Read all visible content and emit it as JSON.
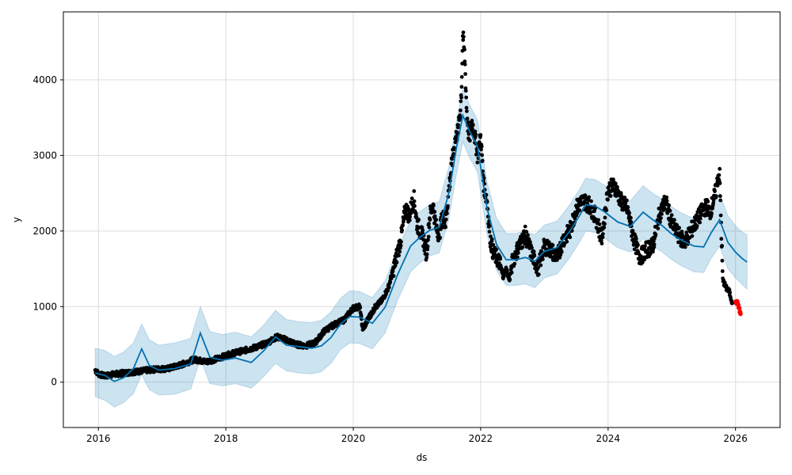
{
  "chart_data": {
    "type": "line",
    "title": "",
    "xlabel": "ds",
    "ylabel": "y",
    "xlim": [
      2015.45,
      2026.7
    ],
    "ylim": [
      -600,
      4900
    ],
    "grid": true,
    "x_ticks": [
      2016,
      2018,
      2020,
      2022,
      2024,
      2026
    ],
    "x_tick_labels": [
      "2016",
      "2018",
      "2020",
      "2022",
      "2024",
      "2026"
    ],
    "y_ticks": [
      0,
      1000,
      2000,
      3000,
      4000
    ],
    "y_tick_labels": [
      "0",
      "1000",
      "2000",
      "3000",
      "4000"
    ],
    "colors": {
      "forecast_line": "#0072b2",
      "uncertainty_band": "#0072b2",
      "observed_points": "#000000",
      "future_points": "#ff0000",
      "grid": "#dddddd"
    },
    "series": [
      {
        "role": "forecast",
        "x": [
          2015.95,
          2016.1,
          2016.25,
          2016.4,
          2016.55,
          2016.68,
          2016.8,
          2016.95,
          2017.2,
          2017.45,
          2017.6,
          2017.75,
          2017.95,
          2018.15,
          2018.4,
          2018.6,
          2018.78,
          2018.95,
          2019.15,
          2019.35,
          2019.5,
          2019.65,
          2019.8,
          2019.95,
          2020.1,
          2020.3,
          2020.5,
          2020.7,
          2020.9,
          2021.05,
          2021.2,
          2021.35,
          2021.5,
          2021.62,
          2021.72,
          2021.82,
          2021.95,
          2022.1,
          2022.25,
          2022.4,
          2022.55,
          2022.7,
          2022.85,
          2023.0,
          2023.2,
          2023.4,
          2023.55,
          2023.65,
          2023.8,
          2023.95,
          2024.15,
          2024.35,
          2024.55,
          2024.7,
          2024.85,
          2025.0,
          2025.15,
          2025.35,
          2025.5,
          2025.62,
          2025.75,
          2025.88,
          2026.0,
          2026.1,
          2026.18
        ],
        "y": [
          120,
          90,
          10,
          60,
          180,
          440,
          220,
          160,
          180,
          240,
          650,
          330,
          290,
          320,
          260,
          420,
          600,
          490,
          470,
          450,
          480,
          590,
          770,
          870,
          860,
          780,
          990,
          1430,
          1800,
          1920,
          2010,
          2050,
          2500,
          3100,
          3530,
          3330,
          3120,
          2300,
          1820,
          1620,
          1620,
          1650,
          1600,
          1730,
          1780,
          2000,
          2200,
          2350,
          2330,
          2250,
          2120,
          2060,
          2250,
          2150,
          2070,
          1960,
          1880,
          1800,
          1790,
          1980,
          2150,
          1850,
          1720,
          1640,
          1590
        ]
      },
      {
        "role": "observed",
        "x": [
          2015.95,
          2016.0,
          2016.1,
          2016.2,
          2016.3,
          2016.5,
          2016.7,
          2016.9,
          2017.1,
          2017.3,
          2017.5,
          2017.7,
          2017.9,
          2018.1,
          2018.3,
          2018.5,
          2018.65,
          2018.8,
          2018.95,
          2019.1,
          2019.25,
          2019.4,
          2019.55,
          2019.7,
          2019.85,
          2020.0,
          2020.1,
          2020.15,
          2020.25,
          2020.35,
          2020.45,
          2020.55,
          2020.65,
          2020.75,
          2020.82,
          2020.88,
          2020.95,
          2021.0,
          2021.05,
          2021.1,
          2021.15,
          2021.2,
          2021.25,
          2021.3,
          2021.35,
          2021.4,
          2021.45,
          2021.5,
          2021.55,
          2021.6,
          2021.65,
          2021.68,
          2021.7,
          2021.72,
          2021.75,
          2021.78,
          2021.82,
          2021.86,
          2021.9,
          2021.95,
          2022.0,
          2022.05,
          2022.1,
          2022.15,
          2022.2,
          2022.25,
          2022.3,
          2022.35,
          2022.4,
          2022.45,
          2022.5,
          2022.6,
          2022.7,
          2022.8,
          2022.9,
          2023.0,
          2023.1,
          2023.2,
          2023.3,
          2023.4,
          2023.5,
          2023.6,
          2023.7,
          2023.8,
          2023.9,
          2024.0,
          2024.1,
          2024.2,
          2024.3,
          2024.4,
          2024.5,
          2024.6,
          2024.7,
          2024.8,
          2024.9,
          2025.0,
          2025.1,
          2025.2,
          2025.3,
          2025.4,
          2025.5,
          2025.55,
          2025.6,
          2025.65,
          2025.7,
          2025.72,
          2025.75,
          2025.8,
          2025.85,
          2025.9,
          2025.95
        ],
        "y": [
          160,
          110,
          80,
          100,
          110,
          130,
          150,
          170,
          180,
          230,
          300,
          270,
          320,
          380,
          420,
          470,
          520,
          600,
          560,
          500,
          480,
          520,
          680,
          760,
          820,
          980,
          1000,
          700,
          860,
          1000,
          1080,
          1250,
          1560,
          1900,
          2300,
          2200,
          2450,
          2100,
          2000,
          1900,
          1700,
          2200,
          2350,
          2050,
          1950,
          2200,
          2100,
          2550,
          2900,
          3200,
          3350,
          3600,
          3900,
          4600,
          4300,
          3600,
          3200,
          3450,
          3300,
          3000,
          3250,
          2600,
          2400,
          1900,
          1700,
          1650,
          1580,
          1400,
          1500,
          1350,
          1600,
          1800,
          1950,
          1700,
          1500,
          1800,
          1750,
          1650,
          1900,
          2000,
          2300,
          2400,
          2350,
          2200,
          1900,
          2550,
          2600,
          2400,
          2300,
          1900,
          1650,
          1750,
          1800,
          2200,
          2400,
          2100,
          1950,
          1850,
          2000,
          2150,
          2300,
          2320,
          2250,
          2400,
          2550,
          2700,
          2750,
          1350,
          1250,
          1200,
          1050
        ]
      },
      {
        "role": "future",
        "x": [
          2026.0,
          2026.02,
          2026.04,
          2026.06,
          2026.08
        ],
        "y": [
          1050,
          1060,
          1030,
          960,
          900
        ]
      }
    ],
    "band": {
      "role": "uncertainty",
      "x": [
        2015.95,
        2016.1,
        2016.25,
        2016.4,
        2016.55,
        2016.68,
        2016.8,
        2016.95,
        2017.2,
        2017.45,
        2017.6,
        2017.75,
        2017.95,
        2018.15,
        2018.4,
        2018.6,
        2018.78,
        2018.95,
        2019.15,
        2019.35,
        2019.5,
        2019.65,
        2019.8,
        2019.95,
        2020.1,
        2020.3,
        2020.5,
        2020.7,
        2020.9,
        2021.05,
        2021.2,
        2021.35,
        2021.5,
        2021.62,
        2021.72,
        2021.82,
        2021.95,
        2022.1,
        2022.25,
        2022.4,
        2022.55,
        2022.7,
        2022.85,
        2023.0,
        2023.2,
        2023.4,
        2023.55,
        2023.65,
        2023.8,
        2023.95,
        2024.15,
        2024.35,
        2024.55,
        2024.7,
        2024.85,
        2025.0,
        2025.15,
        2025.35,
        2025.5,
        2025.62,
        2025.75,
        2025.88,
        2026.0,
        2026.1,
        2026.18
      ],
      "lower": [
        -190,
        -240,
        -330,
        -270,
        -150,
        100,
        -100,
        -170,
        -160,
        -90,
        310,
        -20,
        -50,
        -20,
        -80,
        80,
        250,
        150,
        120,
        110,
        140,
        250,
        430,
        520,
        510,
        440,
        650,
        1090,
        1460,
        1580,
        1670,
        1710,
        2160,
        2750,
        3180,
        2980,
        2780,
        1950,
        1480,
        1280,
        1280,
        1300,
        1250,
        1380,
        1430,
        1650,
        1850,
        2000,
        1980,
        1900,
        1780,
        1720,
        1900,
        1800,
        1720,
        1620,
        1540,
        1460,
        1450,
        1640,
        1800,
        1500,
        1380,
        1300,
        1230
      ],
      "upper": [
        450,
        420,
        340,
        400,
        520,
        770,
        560,
        490,
        520,
        580,
        1000,
        670,
        630,
        660,
        600,
        760,
        950,
        830,
        800,
        790,
        820,
        930,
        1110,
        1210,
        1200,
        1120,
        1340,
        1770,
        2140,
        2260,
        2350,
        2390,
        2850,
        3450,
        3880,
        3680,
        3470,
        2650,
        2170,
        1970,
        1970,
        2000,
        1950,
        2080,
        2130,
        2350,
        2550,
        2700,
        2680,
        2600,
        2460,
        2400,
        2600,
        2500,
        2420,
        2320,
        2240,
        2160,
        2150,
        2330,
        2500,
        2200,
        2070,
        1990,
        1950
      ]
    }
  }
}
